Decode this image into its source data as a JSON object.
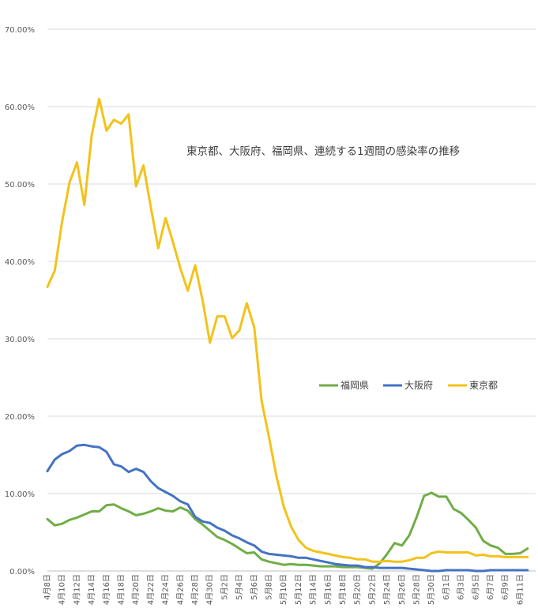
{
  "chart_data": {
    "type": "line",
    "title": "東京都、大阪府、福岡県、連続する1週間の感染率の推移",
    "xlabel": "",
    "ylabel": "",
    "ylim": [
      0,
      70
    ],
    "y_ticks": [
      "0.00%",
      "10.00%",
      "20.00%",
      "30.00%",
      "40.00%",
      "50.00%",
      "60.00%",
      "70.00%"
    ],
    "grid": true,
    "legend_position": "right",
    "categories": [
      "4月8日",
      "4月9日",
      "4月10日",
      "4月11日",
      "4月12日",
      "4月13日",
      "4月14日",
      "4月15日",
      "4月16日",
      "4月17日",
      "4月18日",
      "4月19日",
      "4月20日",
      "4月21日",
      "4月22日",
      "4月23日",
      "4月24日",
      "4月25日",
      "4月26日",
      "4月27日",
      "4月28日",
      "4月29日",
      "4月30日",
      "5月1日",
      "5月2日",
      "5月3日",
      "5月4日",
      "5月5日",
      "5月6日",
      "5月7日",
      "5月8日",
      "5月9日",
      "5月10日",
      "5月11日",
      "5月12日",
      "5月13日",
      "5月14日",
      "5月15日",
      "5月16日",
      "5月17日",
      "5月18日",
      "5月19日",
      "5月20日",
      "5月21日",
      "5月22日",
      "5月23日",
      "5月24日",
      "5月25日",
      "5月26日",
      "5月27日",
      "5月28日",
      "5月29日",
      "5月30日",
      "5月31日",
      "6月1日",
      "6月2日",
      "6月3日",
      "6月4日",
      "6月5日",
      "6月6日",
      "6月7日",
      "6月8日",
      "6月9日",
      "6月10日",
      "6月11日",
      "6月12日"
    ],
    "x_tick_labels": [
      "4月8日",
      "4月10日",
      "4月12日",
      "4月14日",
      "4月16日",
      "4月18日",
      "4月20日",
      "4月22日",
      "4月24日",
      "4月26日",
      "4月28日",
      "4月30日",
      "5月2日",
      "5月4日",
      "5月6日",
      "5月8日",
      "5月10日",
      "5月12日",
      "5月14日",
      "5月16日",
      "5月18日",
      "5月20日",
      "5月22日",
      "5月24日",
      "5月26日",
      "5月28日",
      "5月30日",
      "6月1日",
      "6月3日",
      "6月5日",
      "6月7日",
      "6月9日",
      "6月11日"
    ],
    "series": [
      {
        "name": "福岡県",
        "color": "#70ad47",
        "values": [
          6.7,
          5.9,
          6.1,
          6.6,
          6.9,
          7.3,
          7.7,
          7.7,
          8.5,
          8.6,
          8.1,
          7.7,
          7.2,
          7.4,
          7.7,
          8.1,
          7.8,
          7.7,
          8.2,
          7.8,
          6.7,
          6.0,
          5.2,
          4.4,
          4.0,
          3.5,
          2.9,
          2.3,
          2.4,
          1.5,
          1.2,
          1.0,
          0.8,
          0.9,
          0.8,
          0.8,
          0.7,
          0.6,
          0.6,
          0.6,
          0.5,
          0.5,
          0.5,
          0.4,
          0.3,
          1.0,
          2.2,
          3.6,
          3.3,
          4.6,
          7.0,
          9.7,
          10.1,
          9.6,
          9.6,
          8.0,
          7.5,
          6.6,
          5.6,
          3.9,
          3.3,
          3.0,
          2.2,
          2.2,
          2.3,
          2.9
        ]
      },
      {
        "name": "大阪府",
        "color": "#4472c4",
        "values": [
          12.9,
          14.4,
          15.1,
          15.5,
          16.2,
          16.3,
          16.1,
          16.0,
          15.4,
          13.8,
          13.5,
          12.8,
          13.2,
          12.8,
          11.6,
          10.7,
          10.2,
          9.7,
          9.0,
          8.6,
          7.0,
          6.4,
          6.2,
          5.6,
          5.2,
          4.6,
          4.2,
          3.7,
          3.3,
          2.5,
          2.2,
          2.1,
          2.0,
          1.9,
          1.7,
          1.7,
          1.5,
          1.3,
          1.1,
          0.9,
          0.8,
          0.7,
          0.7,
          0.5,
          0.5,
          0.4,
          0.4,
          0.4,
          0.4,
          0.3,
          0.2,
          0.1,
          0.0,
          0.0,
          0.1,
          0.1,
          0.1,
          0.1,
          0.0,
          0.0,
          0.1,
          0.1,
          0.1,
          0.1,
          0.1,
          0.1
        ]
      },
      {
        "name": "東京都",
        "color": "#f3c21b",
        "values": [
          36.7,
          38.8,
          45.2,
          50.2,
          52.8,
          47.3,
          56.3,
          61.0,
          56.9,
          58.3,
          57.8,
          59.0,
          49.7,
          52.4,
          47.0,
          41.7,
          45.6,
          42.5,
          39.1,
          36.2,
          39.5,
          35.0,
          29.5,
          32.9,
          32.9,
          30.1,
          31.1,
          34.6,
          31.5,
          22.0,
          17.3,
          12.3,
          8.3,
          5.7,
          4.0,
          3.0,
          2.6,
          2.4,
          2.2,
          2.0,
          1.8,
          1.7,
          1.5,
          1.5,
          1.2,
          1.2,
          1.3,
          1.2,
          1.2,
          1.4,
          1.7,
          1.7,
          2.3,
          2.5,
          2.4,
          2.4,
          2.4,
          2.4,
          2.0,
          2.1,
          1.9,
          1.9,
          1.8,
          1.8,
          1.8,
          1.8
        ]
      }
    ]
  }
}
